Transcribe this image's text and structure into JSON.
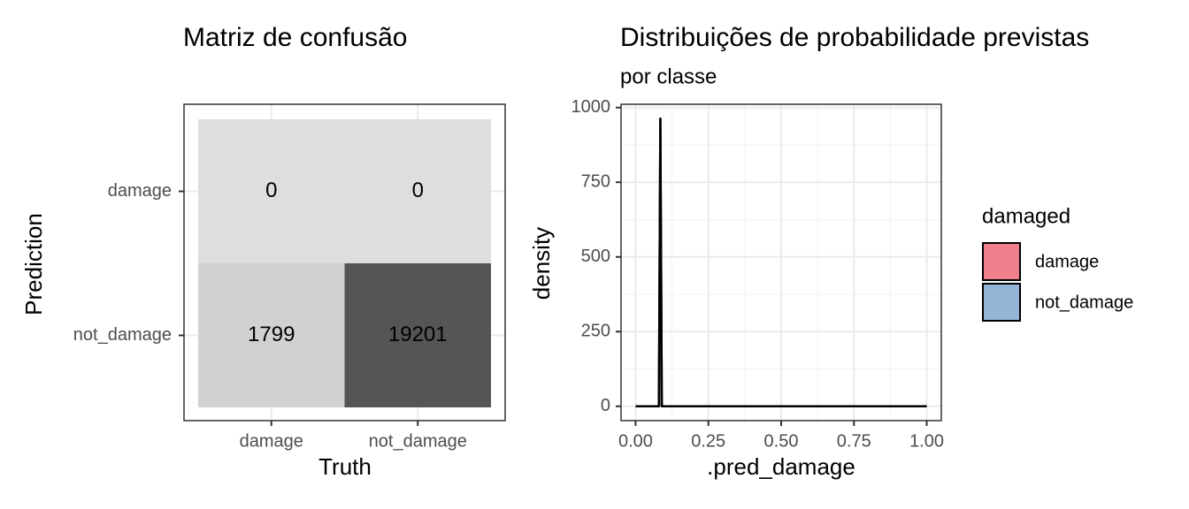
{
  "chart_data": [
    {
      "type": "heatmap",
      "title": "Matriz de confusão",
      "x_label": "Truth",
      "y_label": "Prediction",
      "x_categories": [
        "damage",
        "not_damage"
      ],
      "y_categories": [
        "damage",
        "not_damage"
      ],
      "values": [
        [
          0,
          0
        ],
        [
          1799,
          19201
        ]
      ],
      "fill_low": "#dedede",
      "fill_high": "#555555",
      "grid": true
    },
    {
      "type": "line",
      "title": "Distribuições de probabilidade previstas",
      "subtitle": "por classe",
      "x_label": ".pred_damage",
      "y_label": "density",
      "legend_title": "damaged",
      "legend_position": "right",
      "x": [
        0,
        0.08,
        0.085,
        0.09,
        0.1,
        1
      ],
      "series": [
        {
          "name": "damage",
          "color": "#ee7f8b",
          "values": [
            0,
            0,
            963,
            0,
            0,
            0
          ]
        },
        {
          "name": "not_damage",
          "color": "#93b5d6",
          "values": [
            0,
            0,
            963,
            0,
            0,
            0
          ]
        }
      ],
      "xlim": [
        -0.05,
        1.05
      ],
      "ylim": [
        -48,
        1011
      ],
      "xticks": [
        {
          "value": 0,
          "label": "0.00"
        },
        {
          "value": 0.25,
          "label": "0.25"
        },
        {
          "value": 0.5,
          "label": "0.50"
        },
        {
          "value": 0.75,
          "label": "0.75"
        },
        {
          "value": 1,
          "label": "1.00"
        }
      ],
      "yticks": [
        0,
        250,
        500,
        750,
        1000
      ],
      "grid": true
    }
  ]
}
